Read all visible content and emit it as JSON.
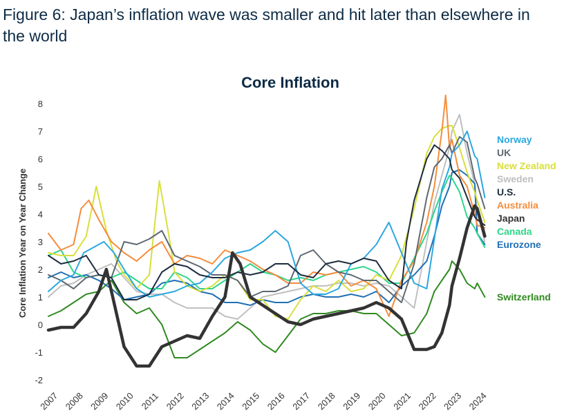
{
  "figure": {
    "title": "Figure 6: Japan’s inflation wave was smaller and hit later than elsewhere in the world"
  },
  "chart_data": {
    "type": "line",
    "title": "Core Inflation",
    "xlabel": "",
    "ylabel": "Core Inflation Year on Year Change",
    "ylim": [
      -2,
      8.3
    ],
    "xlim": [
      2007.0,
      2024.4
    ],
    "yticks": [
      -2,
      -1,
      0,
      1,
      2,
      3,
      4,
      5,
      6,
      7,
      8
    ],
    "xticks": [
      "2007",
      "2008",
      "2009",
      "2010",
      "2011",
      "2012",
      "2013",
      "2014",
      "2015",
      "2016",
      "2017",
      "2018",
      "2019",
      "2020",
      "2021",
      "2022",
      "2023",
      "2024"
    ],
    "grid": false,
    "legend": "right",
    "series": [
      {
        "name": "Norway",
        "color": "#2aa7e0",
        "x": [
          2007,
          2007.5,
          2008,
          2008.4,
          2008.8,
          2009.2,
          2009.6,
          2010,
          2010.5,
          2011,
          2011.5,
          2012,
          2012.5,
          2013,
          2013.5,
          2014,
          2014.5,
          2015,
          2015.5,
          2016,
          2016.5,
          2017,
          2017.5,
          2018,
          2018.5,
          2019,
          2019.5,
          2020,
          2020.5,
          2021,
          2021.5,
          2022,
          2022.3,
          2022.6,
          2022.9,
          2023,
          2023.3,
          2023.6,
          2023.9,
          2024,
          2024.3
        ],
        "y": [
          1.2,
          1.6,
          1.8,
          2.6,
          2.8,
          3.0,
          2.6,
          2.0,
          1.3,
          1.0,
          1.1,
          1.2,
          1.4,
          1.5,
          1.9,
          2.4,
          2.6,
          2.7,
          3.0,
          3.4,
          3.0,
          1.5,
          1.1,
          1.1,
          1.3,
          2.2,
          2.4,
          2.9,
          3.7,
          2.6,
          1.5,
          1.3,
          3.1,
          4.9,
          5.7,
          6.2,
          6.5,
          7.0,
          6.1,
          6.0,
          4.6
        ]
      },
      {
        "name": "UK",
        "color": "#5d6770",
        "x": [
          2007,
          2007.5,
          2008,
          2008.5,
          2009,
          2009.5,
          2010,
          2010.5,
          2011,
          2011.5,
          2012,
          2012.5,
          2013,
          2013.5,
          2014,
          2014.5,
          2015,
          2015.5,
          2016,
          2016.5,
          2017,
          2017.5,
          2018,
          2018.5,
          2019,
          2019.5,
          2020,
          2020.5,
          2021,
          2021.5,
          2022,
          2022.3,
          2022.6,
          2022.9,
          2023,
          2023.3,
          2023.6,
          2023.9,
          2024,
          2024.3
        ],
        "y": [
          1.8,
          1.6,
          1.3,
          1.7,
          1.8,
          1.7,
          3.0,
          2.9,
          3.1,
          3.4,
          2.5,
          2.3,
          2.1,
          1.8,
          1.8,
          1.6,
          1.0,
          1.2,
          1.2,
          1.4,
          2.5,
          2.7,
          2.2,
          1.9,
          1.8,
          1.6,
          1.6,
          1.2,
          0.8,
          2.2,
          4.6,
          5.7,
          6.0,
          6.5,
          6.2,
          6.8,
          6.6,
          5.3,
          5.1,
          4.2
        ]
      },
      {
        "name": "New Zealand",
        "color": "#d8df3a",
        "x": [
          2007,
          2007.5,
          2008,
          2008.5,
          2008.9,
          2009.3,
          2009.7,
          2010,
          2010.5,
          2011,
          2011.4,
          2011.8,
          2012,
          2012.5,
          2013,
          2013.5,
          2014,
          2014.5,
          2015,
          2015.5,
          2016,
          2016.5,
          2017,
          2017.5,
          2018,
          2018.5,
          2019,
          2019.5,
          2020,
          2020.5,
          2021,
          2021.5,
          2022,
          2022.3,
          2022.6,
          2022.9,
          2023,
          2023.3,
          2023.6,
          2023.9,
          2024,
          2024.3
        ],
        "y": [
          2.6,
          2.5,
          2.5,
          3.2,
          5.0,
          3.4,
          2.3,
          1.8,
          1.3,
          1.8,
          5.2,
          3.1,
          1.9,
          1.4,
          1.2,
          1.4,
          1.8,
          1.6,
          0.9,
          0.9,
          0.3,
          0.2,
          0.9,
          1.4,
          1.2,
          1.6,
          1.2,
          1.3,
          1.8,
          1.6,
          2.5,
          4.2,
          6.2,
          6.8,
          7.1,
          7.2,
          7.2,
          6.4,
          5.5,
          4.8,
          4.5,
          3.7
        ]
      },
      {
        "name": "Sweden",
        "color": "#bfbfbf",
        "x": [
          2007,
          2007.5,
          2008,
          2008.5,
          2009,
          2009.5,
          2010,
          2010.5,
          2011,
          2011.5,
          2012,
          2012.5,
          2013,
          2013.5,
          2014,
          2014.5,
          2015,
          2015.5,
          2016,
          2016.5,
          2017,
          2017.5,
          2018,
          2018.5,
          2019,
          2019.5,
          2020,
          2020.5,
          2021,
          2021.5,
          2022,
          2022.3,
          2022.6,
          2022.9,
          2023,
          2023.3,
          2023.6,
          2023.9,
          2024,
          2024.3
        ],
        "y": [
          1.0,
          1.4,
          1.5,
          1.8,
          2.0,
          2.2,
          1.7,
          1.2,
          1.1,
          1.1,
          0.8,
          0.6,
          0.6,
          0.6,
          0.3,
          0.2,
          0.6,
          1.0,
          1.1,
          1.2,
          1.3,
          1.4,
          1.4,
          1.5,
          1.5,
          1.4,
          1.5,
          1.4,
          1.0,
          0.6,
          3.0,
          4.4,
          5.4,
          6.4,
          7.0,
          7.6,
          6.2,
          5.1,
          4.1,
          3.0
        ]
      },
      {
        "name": "U.S.",
        "color": "#1c2b3e",
        "x": [
          2007,
          2007.5,
          2008,
          2008.5,
          2009,
          2009.5,
          2010,
          2010.5,
          2011,
          2011.5,
          2012,
          2012.5,
          2013,
          2013.5,
          2014,
          2014.5,
          2015,
          2015.5,
          2016,
          2016.5,
          2017,
          2017.5,
          2018,
          2018.5,
          2019,
          2019.5,
          2020,
          2020.5,
          2021,
          2021.2,
          2021.5,
          2022,
          2022.3,
          2022.6,
          2022.9,
          2023,
          2023.3,
          2023.6,
          2023.9,
          2024,
          2024.3
        ],
        "y": [
          2.5,
          2.2,
          2.3,
          2.5,
          1.8,
          1.7,
          0.9,
          0.9,
          1.1,
          1.9,
          2.2,
          2.1,
          1.8,
          1.7,
          1.7,
          1.9,
          1.8,
          1.9,
          2.2,
          2.2,
          1.8,
          1.7,
          2.2,
          2.3,
          2.2,
          2.4,
          2.3,
          1.6,
          1.3,
          3.0,
          4.5,
          6.0,
          6.5,
          6.3,
          6.0,
          5.6,
          5.3,
          4.6,
          3.9,
          3.8,
          3.6
        ]
      },
      {
        "name": "Australia",
        "color": "#f58c3c",
        "x": [
          2007,
          2007.5,
          2008,
          2008.3,
          2008.6,
          2009,
          2009.5,
          2010,
          2010.5,
          2011,
          2011.5,
          2012,
          2012.5,
          2013,
          2013.5,
          2014,
          2014.5,
          2015,
          2015.5,
          2016,
          2016.5,
          2017,
          2017.5,
          2018,
          2018.5,
          2019,
          2019.5,
          2020,
          2020.5,
          2021,
          2021.5,
          2022,
          2022.3,
          2022.6,
          2022.75,
          2022.9,
          2023,
          2023.3,
          2023.6,
          2023.9,
          2024,
          2024.3
        ],
        "y": [
          3.3,
          2.7,
          2.9,
          4.2,
          4.5,
          3.8,
          3.0,
          2.6,
          2.3,
          2.7,
          3.0,
          2.2,
          2.5,
          2.4,
          2.2,
          2.7,
          2.5,
          2.3,
          2.0,
          1.8,
          1.5,
          1.5,
          1.9,
          1.8,
          1.9,
          1.4,
          1.6,
          1.3,
          0.3,
          1.6,
          2.3,
          3.7,
          5.0,
          7.0,
          8.3,
          6.4,
          6.7,
          5.4,
          5.0,
          4.0,
          3.6,
          3.5
        ]
      },
      {
        "name": "Japan",
        "color": "#333333",
        "width": 4.5,
        "x": [
          2007,
          2007.5,
          2008,
          2008.5,
          2009,
          2009.3,
          2009.6,
          2010,
          2010.5,
          2011,
          2011.5,
          2012,
          2012.5,
          2013,
          2013.5,
          2014,
          2014.3,
          2014.6,
          2015,
          2015.5,
          2016,
          2016.5,
          2017,
          2017.5,
          2018,
          2018.5,
          2019,
          2019.5,
          2020,
          2020.5,
          2021,
          2021.5,
          2022,
          2022.3,
          2022.6,
          2022.9,
          2023,
          2023.3,
          2023.6,
          2023.9,
          2024,
          2024.3
        ],
        "y": [
          -0.2,
          -0.1,
          -0.1,
          0.4,
          1.2,
          2.0,
          0.8,
          -0.8,
          -1.5,
          -1.5,
          -0.8,
          -0.6,
          -0.4,
          -0.5,
          0.3,
          1.0,
          2.6,
          2.2,
          1.0,
          0.7,
          0.4,
          0.1,
          0.0,
          0.2,
          0.3,
          0.4,
          0.5,
          0.6,
          0.8,
          0.6,
          0.2,
          -0.9,
          -0.9,
          -0.8,
          -0.3,
          0.7,
          1.4,
          2.4,
          3.5,
          4.3,
          4.2,
          3.2
        ]
      },
      {
        "name": "Canada",
        "color": "#2cd68a",
        "x": [
          2007,
          2007.5,
          2008,
          2008.5,
          2009,
          2009.5,
          2010,
          2010.5,
          2011,
          2011.5,
          2012,
          2012.5,
          2013,
          2013.5,
          2014,
          2014.5,
          2015,
          2015.5,
          2016,
          2016.5,
          2017,
          2017.5,
          2018,
          2018.5,
          2019,
          2019.5,
          2020,
          2020.5,
          2021,
          2021.5,
          2022,
          2022.3,
          2022.6,
          2022.9,
          2023,
          2023.3,
          2023.6,
          2023.9,
          2024,
          2024.3
        ],
        "y": [
          2.5,
          2.7,
          1.9,
          1.7,
          1.8,
          1.7,
          1.9,
          1.6,
          1.3,
          1.3,
          1.9,
          1.7,
          1.3,
          1.3,
          1.6,
          1.9,
          2.2,
          1.9,
          1.8,
          1.6,
          1.7,
          1.6,
          1.8,
          1.9,
          2.0,
          2.1,
          1.9,
          1.5,
          1.5,
          2.4,
          3.3,
          4.1,
          4.8,
          5.4,
          5.3,
          4.8,
          3.9,
          3.5,
          3.3,
          2.8
        ]
      },
      {
        "name": "Eurozone",
        "color": "#1f6fb5",
        "x": [
          2007,
          2007.5,
          2008,
          2008.5,
          2009,
          2009.5,
          2010,
          2010.5,
          2011,
          2011.5,
          2012,
          2012.5,
          2013,
          2013.5,
          2014,
          2014.5,
          2015,
          2015.5,
          2016,
          2016.5,
          2017,
          2017.5,
          2018,
          2018.5,
          2019,
          2019.5,
          2020,
          2020.5,
          2021,
          2021.5,
          2022,
          2022.3,
          2022.6,
          2022.9,
          2023,
          2023.3,
          2023.6,
          2023.9,
          2024,
          2024.3
        ],
        "y": [
          1.7,
          1.9,
          1.7,
          1.8,
          1.6,
          1.3,
          0.9,
          1.0,
          1.1,
          1.5,
          1.6,
          1.5,
          1.2,
          1.1,
          0.8,
          0.8,
          0.7,
          0.9,
          0.8,
          0.8,
          1.0,
          1.1,
          1.0,
          1.0,
          1.1,
          1.0,
          1.2,
          0.8,
          1.4,
          1.8,
          2.3,
          3.2,
          4.3,
          5.0,
          5.5,
          5.6,
          5.4,
          5.1,
          3.3,
          2.9
        ]
      },
      {
        "name": "Switzerland",
        "color": "#2f8a1f",
        "x": [
          2007,
          2007.5,
          2008,
          2008.5,
          2009,
          2009.5,
          2010,
          2010.5,
          2011,
          2011.5,
          2012,
          2012.5,
          2013,
          2013.5,
          2014,
          2014.5,
          2015,
          2015.5,
          2016,
          2016.5,
          2017,
          2017.5,
          2018,
          2018.5,
          2019,
          2019.5,
          2020,
          2020.5,
          2021,
          2021.5,
          2022,
          2022.3,
          2022.6,
          2022.9,
          2023,
          2023.3,
          2023.6,
          2023.9,
          2024,
          2024.3
        ],
        "y": [
          0.3,
          0.5,
          0.8,
          1.1,
          1.2,
          1.6,
          0.8,
          0.4,
          0.6,
          0.0,
          -1.2,
          -1.2,
          -0.9,
          -0.6,
          -0.3,
          0.1,
          -0.2,
          -0.7,
          -1.0,
          -0.4,
          0.2,
          0.4,
          0.4,
          0.5,
          0.5,
          0.4,
          0.4,
          0.0,
          -0.4,
          -0.3,
          0.4,
          1.2,
          1.6,
          2.0,
          2.3,
          2.0,
          1.5,
          1.3,
          1.5,
          1.0
        ]
      }
    ]
  }
}
